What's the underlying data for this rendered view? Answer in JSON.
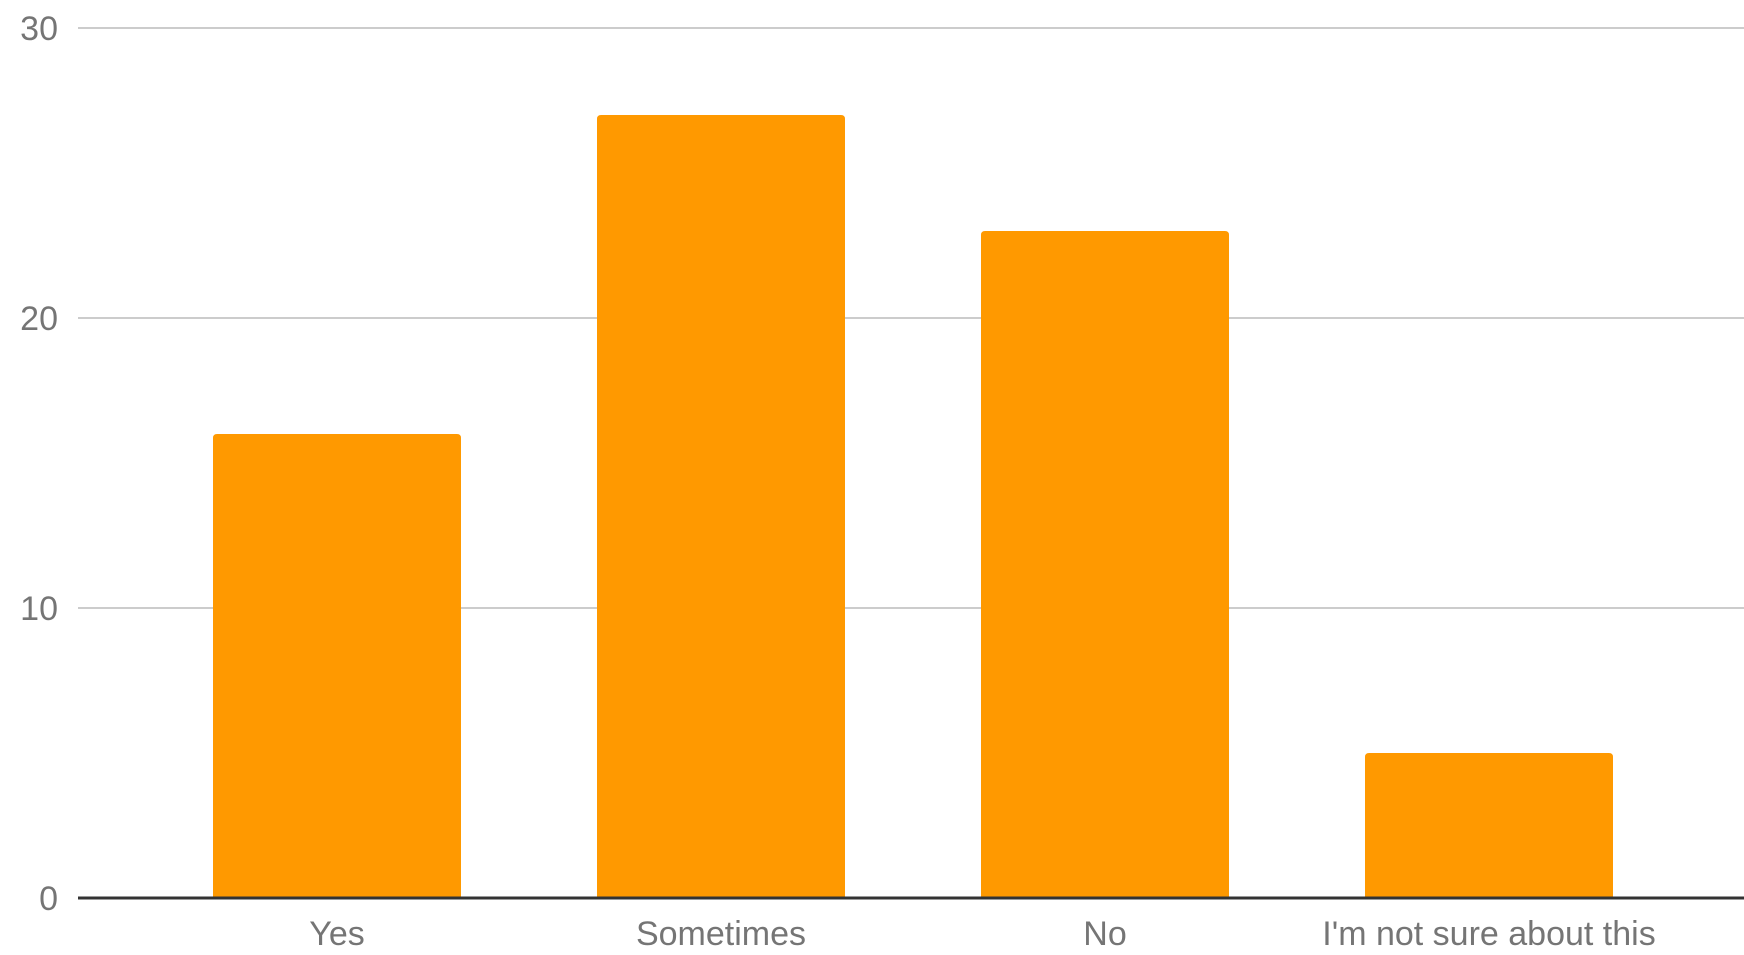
{
  "chart_data": {
    "type": "bar",
    "title": "",
    "xlabel": "",
    "ylabel": "",
    "categories": [
      "Yes",
      "Sometimes",
      "No",
      "I'm not sure about this"
    ],
    "values": [
      16,
      27,
      23,
      5
    ],
    "ylim": [
      0,
      30
    ],
    "yticks": [
      0,
      10,
      20,
      30
    ],
    "grid": true,
    "legend": "none",
    "bar_color": "#ff9900",
    "grid_color": "#cccccc",
    "axis_color": "#333333",
    "label_color": "#757575"
  }
}
